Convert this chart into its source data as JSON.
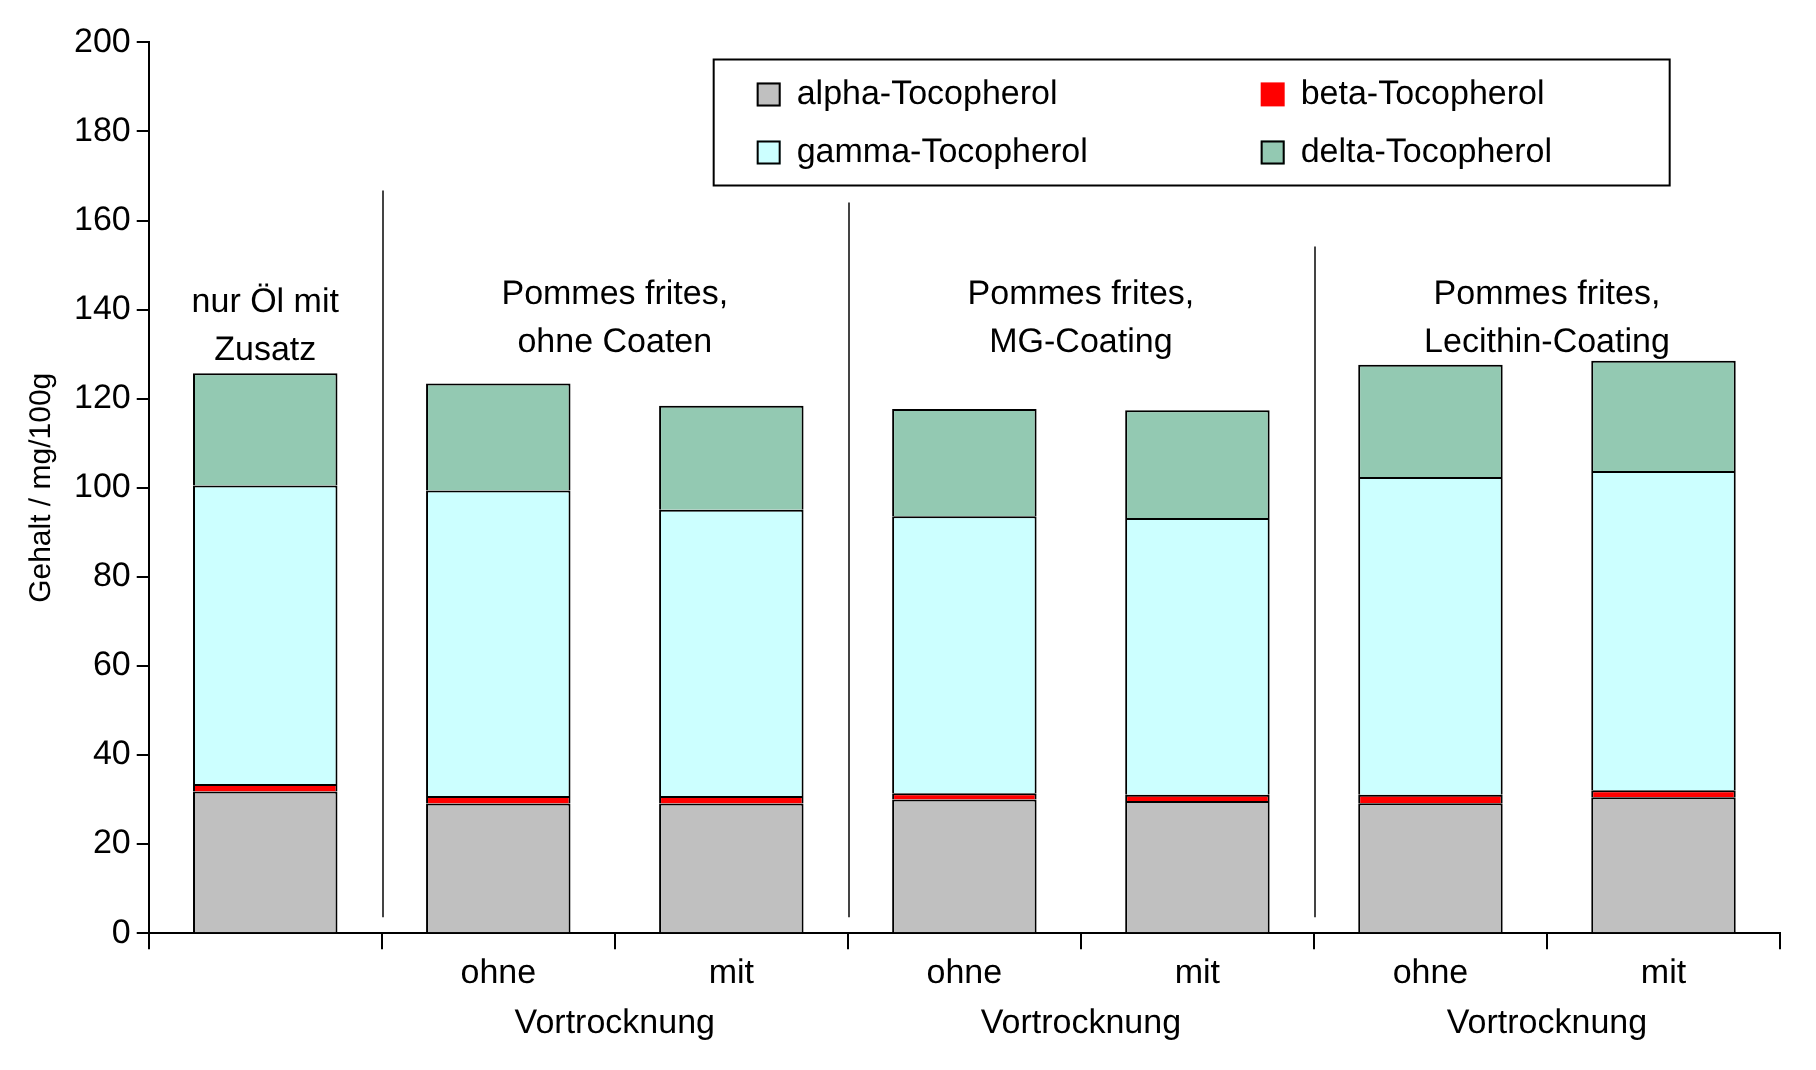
{
  "chart_data": {
    "type": "bar",
    "stacked": true,
    "ylabel": "Gehalt / mg/100g",
    "categories": [
      null,
      "ohne",
      "mit",
      "ohne",
      "mit",
      "ohne",
      "mit"
    ],
    "series": [
      {
        "name": "alpha-Tocopherol",
        "color": "#c0c0c0",
        "values": [
          31.8,
          29.1,
          29.1,
          30.0,
          29.7,
          29.2,
          30.5
        ]
      },
      {
        "name": "beta-Tocopherol",
        "color": "#ff0000",
        "values": [
          1.7,
          1.7,
          1.7,
          1.4,
          1.4,
          1.9,
          1.6
        ]
      },
      {
        "name": "gamma-Tocopherol",
        "color": "#ccffff",
        "values": [
          67.0,
          68.6,
          64.3,
          62.2,
          62.1,
          71.3,
          71.7
        ]
      },
      {
        "name": "delta-Tocopherol",
        "color": "#93c9b2",
        "values": [
          25.2,
          24.0,
          23.3,
          24.1,
          24.2,
          25.2,
          24.7
        ]
      }
    ],
    "ylim": [
      0,
      200
    ],
    "yticks": [
      0,
      20,
      40,
      60,
      80,
      100,
      120,
      140,
      160,
      180,
      200
    ],
    "grid": false,
    "legend": "top",
    "annotations": [
      "nur Öl mit Zusatz",
      "Pommes frites, ohne Coaten",
      "Pommes frites, MG-Coating",
      "Pommes frites, Lecithin-Coating",
      "Vortrocknung",
      "Vortrocknung",
      "Vortrocknung"
    ]
  }
}
